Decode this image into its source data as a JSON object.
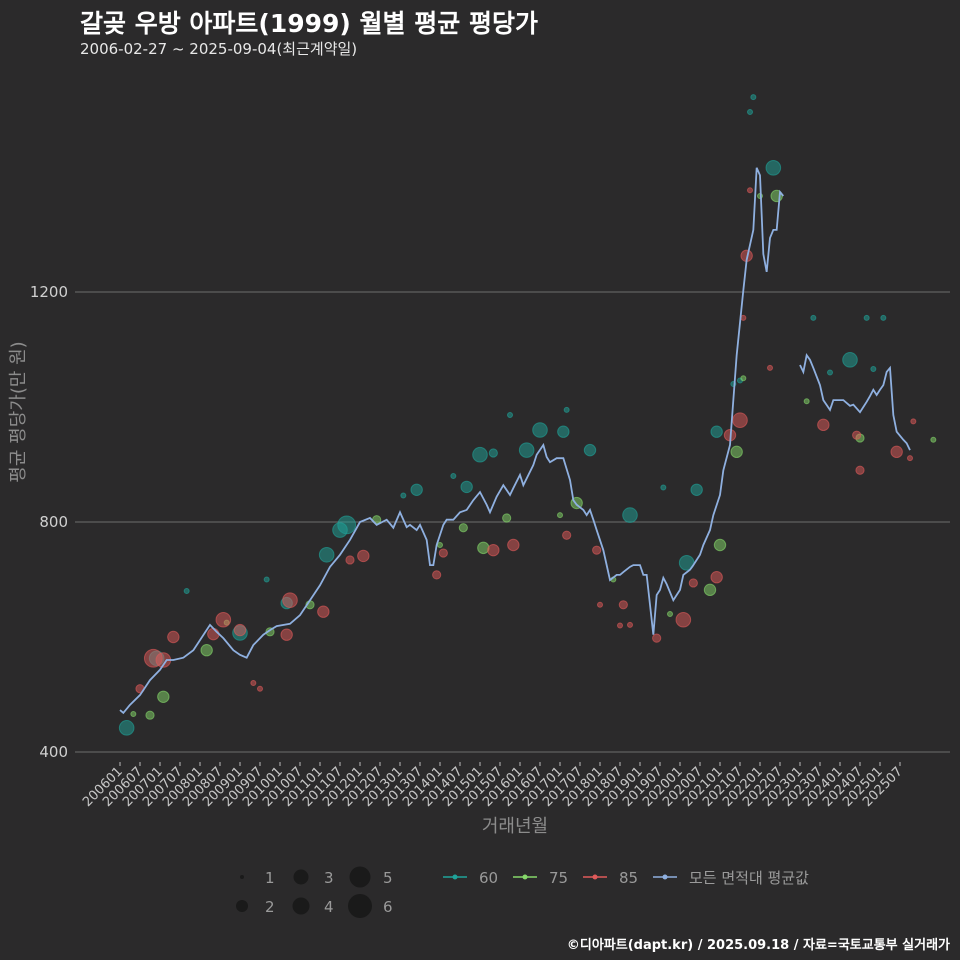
{
  "title": "갈곶 우방 아파트(1999) 월별 평균 평당가",
  "subtitle": "2006-02-27 ~ 2025-09-04(최근계약일)",
  "footer": "©디아파트(dapt.kr) / 2025.09.18 / 자료=국토교통부 실거래가",
  "colors": {
    "background": "#2b2a2b",
    "s60": "#1fa39a",
    "s75": "#86d86a",
    "s85": "#e05a5a",
    "avg": "#8fb0e0",
    "grid": "#6e6e6e"
  },
  "chart_data": {
    "type": "scatter",
    "title": "갈곶 우방 아파트(1999) 월별 평균 평당가",
    "xlabel": "거래년월",
    "ylabel": "평균 평당가(만 원)",
    "x_unit": "months since 2006-01",
    "ylim": [
      360,
      1560
    ],
    "yticks": [
      400,
      800,
      1200
    ],
    "xticks": [
      "200601",
      "200607",
      "200701",
      "200707",
      "200801",
      "200807",
      "200901",
      "200907",
      "201001",
      "201007",
      "201101",
      "201107",
      "201201",
      "201207",
      "201301",
      "201307",
      "201401",
      "201407",
      "201501",
      "201507",
      "201601",
      "201607",
      "201701",
      "201707",
      "201801",
      "201807",
      "201901",
      "201907",
      "202001",
      "202007",
      "202101",
      "202107",
      "202201",
      "202207",
      "202301",
      "202307",
      "202401",
      "202407",
      "202501",
      "202507"
    ],
    "size_legend": [
      "1",
      "2",
      "3",
      "4",
      "5",
      "6"
    ],
    "series_legend": [
      "60",
      "75",
      "85",
      "모든 면적대 평균값"
    ],
    "series": [
      {
        "name": "60",
        "color_key": "s60",
        "points": [
          [
            2,
            442,
            4
          ],
          [
            11,
            563,
            4
          ],
          [
            36,
            607,
            4
          ],
          [
            50,
            659,
            3
          ],
          [
            62,
            743,
            4
          ],
          [
            66,
            786,
            4
          ],
          [
            68,
            795,
            5
          ],
          [
            89,
            856,
            3
          ],
          [
            104,
            861,
            3
          ],
          [
            108,
            917,
            4
          ],
          [
            112,
            920,
            2
          ],
          [
            122,
            925,
            4
          ],
          [
            126,
            960,
            4
          ],
          [
            133,
            957,
            3
          ],
          [
            141,
            925,
            3
          ],
          [
            153,
            812,
            4
          ],
          [
            170,
            729,
            4
          ],
          [
            173,
            856,
            3
          ],
          [
            179,
            957,
            3
          ],
          [
            196,
            1416,
            4
          ],
          [
            219,
            1082,
            4
          ],
          [
            190,
            1539,
            1
          ],
          [
            189,
            1513,
            1
          ],
          [
            208,
            1155,
            1
          ],
          [
            224,
            1155,
            1
          ],
          [
            229,
            1155,
            1
          ],
          [
            117,
            986,
            1
          ],
          [
            134,
            995,
            1
          ],
          [
            20,
            680,
            1
          ],
          [
            44,
            700,
            1
          ],
          [
            85,
            846,
            1
          ],
          [
            100,
            880,
            1
          ],
          [
            163,
            860,
            1
          ],
          [
            184,
            1040,
            1
          ],
          [
            186,
            1046,
            1
          ],
          [
            213,
            1060,
            1
          ],
          [
            226,
            1066,
            1
          ]
        ]
      },
      {
        "name": "75",
        "color_key": "s75",
        "points": [
          [
            13,
            496,
            3
          ],
          [
            9,
            464,
            2
          ],
          [
            26,
            577,
            3
          ],
          [
            45,
            609,
            2
          ],
          [
            57,
            656,
            2
          ],
          [
            77,
            804,
            2
          ],
          [
            103,
            790,
            2
          ],
          [
            109,
            755,
            3
          ],
          [
            116,
            807,
            2
          ],
          [
            137,
            833,
            3
          ],
          [
            185,
            922,
            3
          ],
          [
            180,
            760,
            3
          ],
          [
            177,
            682,
            3
          ],
          [
            197,
            1367,
            3
          ],
          [
            222,
            946,
            2
          ],
          [
            206,
            1010,
            1
          ],
          [
            244,
            943,
            1
          ],
          [
            4,
            466,
            1
          ],
          [
            32,
            625,
            1
          ],
          [
            96,
            760,
            1
          ],
          [
            132,
            812,
            1
          ],
          [
            148,
            700,
            1
          ],
          [
            165,
            640,
            1
          ],
          [
            187,
            1050,
            1
          ],
          [
            192,
            1367,
            1
          ]
        ]
      },
      {
        "name": "85",
        "color_key": "s85",
        "points": [
          [
            13,
            560,
            4
          ],
          [
            10,
            563,
            5
          ],
          [
            16,
            600,
            3
          ],
          [
            28,
            605,
            3
          ],
          [
            31,
            630,
            4
          ],
          [
            36,
            612,
            3
          ],
          [
            51,
            664,
            4
          ],
          [
            50,
            604,
            3
          ],
          [
            61,
            644,
            3
          ],
          [
            69,
            734,
            2
          ],
          [
            73,
            741,
            3
          ],
          [
            95,
            708,
            2
          ],
          [
            97,
            746,
            2
          ],
          [
            112,
            751,
            3
          ],
          [
            118,
            760,
            3
          ],
          [
            134,
            777,
            2
          ],
          [
            143,
            751,
            2
          ],
          [
            151,
            656,
            2
          ],
          [
            161,
            598,
            2
          ],
          [
            169,
            630,
            4
          ],
          [
            172,
            694,
            2
          ],
          [
            179,
            704,
            3
          ],
          [
            186,
            977,
            4
          ],
          [
            183,
            951,
            3
          ],
          [
            188,
            1263,
            3
          ],
          [
            189,
            1377,
            1
          ],
          [
            211,
            969,
            3
          ],
          [
            221,
            951,
            2
          ],
          [
            222,
            890,
            2
          ],
          [
            233,
            922,
            3
          ],
          [
            237,
            911,
            1
          ],
          [
            195,
            1068,
            1
          ],
          [
            187,
            1155,
            1
          ],
          [
            144,
            656,
            1
          ],
          [
            153,
            621,
            1
          ],
          [
            6,
            510,
            2
          ],
          [
            40,
            520,
            1
          ],
          [
            42,
            510,
            1
          ],
          [
            150,
            620,
            1
          ],
          [
            238,
            975,
            1
          ]
        ]
      }
    ],
    "average": {
      "name": "모든 면적대 평균값",
      "color_key": "avg",
      "segments": [
        [
          [
            0,
            473
          ],
          [
            1,
            468
          ],
          [
            3,
            482
          ],
          [
            6,
            499
          ],
          [
            9,
            525
          ],
          [
            12,
            543
          ],
          [
            14,
            560
          ],
          [
            16,
            560
          ],
          [
            19,
            564
          ],
          [
            22,
            577
          ],
          [
            27,
            621
          ],
          [
            29,
            609
          ],
          [
            31,
            598
          ],
          [
            34,
            577
          ],
          [
            36,
            569
          ],
          [
            38,
            564
          ],
          [
            40,
            586
          ],
          [
            43,
            604
          ],
          [
            45,
            612
          ],
          [
            47,
            619
          ],
          [
            51,
            623
          ],
          [
            54,
            638
          ],
          [
            57,
            664
          ],
          [
            60,
            690
          ],
          [
            63,
            722
          ],
          [
            66,
            743
          ],
          [
            69,
            769
          ],
          [
            72,
            800
          ],
          [
            75,
            807
          ],
          [
            77,
            795
          ],
          [
            80,
            804
          ],
          [
            82,
            790
          ],
          [
            84,
            817
          ],
          [
            86,
            791
          ],
          [
            87,
            795
          ],
          [
            89,
            786
          ],
          [
            90,
            795
          ],
          [
            92,
            769
          ],
          [
            93,
            725
          ],
          [
            94,
            725
          ],
          [
            95,
            760
          ],
          [
            97,
            795
          ],
          [
            98,
            804
          ],
          [
            100,
            804
          ],
          [
            102,
            817
          ],
          [
            104,
            821
          ],
          [
            106,
            838
          ],
          [
            108,
            852
          ],
          [
            110,
            830
          ],
          [
            111,
            817
          ],
          [
            113,
            844
          ],
          [
            115,
            864
          ],
          [
            117,
            847
          ],
          [
            118,
            859
          ],
          [
            120,
            882
          ],
          [
            121,
            864
          ],
          [
            124,
            899
          ],
          [
            125,
            917
          ],
          [
            127,
            934
          ],
          [
            128,
            913
          ],
          [
            129,
            904
          ],
          [
            131,
            911
          ],
          [
            133,
            911
          ],
          [
            135,
            873
          ],
          [
            136,
            838
          ],
          [
            137,
            830
          ],
          [
            139,
            821
          ],
          [
            140,
            812
          ],
          [
            141,
            821
          ],
          [
            142,
            804
          ],
          [
            143,
            786
          ],
          [
            145,
            751
          ],
          [
            146,
            725
          ],
          [
            147,
            699
          ],
          [
            149,
            708
          ],
          [
            150,
            708
          ],
          [
            151,
            713
          ],
          [
            153,
            722
          ],
          [
            154,
            725
          ],
          [
            156,
            725
          ],
          [
            157,
            708
          ],
          [
            158,
            708
          ],
          [
            160,
            604
          ],
          [
            161,
            673
          ],
          [
            162,
            682
          ],
          [
            163,
            703
          ],
          [
            164,
            692
          ],
          [
            166,
            664
          ],
          [
            167,
            673
          ],
          [
            168,
            682
          ],
          [
            169,
            708
          ],
          [
            171,
            717
          ],
          [
            172,
            725
          ],
          [
            174,
            743
          ],
          [
            175,
            760
          ],
          [
            177,
            786
          ],
          [
            178,
            812
          ],
          [
            180,
            847
          ],
          [
            181,
            890
          ],
          [
            183,
            934
          ],
          [
            184,
            1012
          ],
          [
            185,
            1090
          ],
          [
            187,
            1203
          ],
          [
            188,
            1256
          ],
          [
            190,
            1308
          ],
          [
            191,
            1416
          ],
          [
            192,
            1403
          ],
          [
            193,
            1266
          ],
          [
            194,
            1235
          ],
          [
            195,
            1294
          ],
          [
            196,
            1308
          ],
          [
            197,
            1308
          ],
          [
            198,
            1374
          ],
          [
            199,
            1367
          ]
        ],
        [
          [
            204,
            1073
          ],
          [
            205,
            1061
          ],
          [
            206,
            1090
          ],
          [
            207,
            1082
          ],
          [
            208,
            1068
          ],
          [
            210,
            1038
          ],
          [
            211,
            1012
          ],
          [
            213,
            995
          ],
          [
            214,
            1012
          ],
          [
            216,
            1012
          ],
          [
            217,
            1012
          ],
          [
            219,
            1002
          ],
          [
            220,
            1004
          ],
          [
            222,
            991
          ],
          [
            223,
            1000
          ],
          [
            224,
            1009
          ],
          [
            225,
            1019
          ],
          [
            226,
            1030
          ],
          [
            227,
            1021
          ],
          [
            228,
            1030
          ],
          [
            229,
            1038
          ],
          [
            230,
            1061
          ],
          [
            231,
            1068
          ],
          [
            232,
            986
          ],
          [
            233,
            957
          ],
          [
            235,
            943
          ],
          [
            236,
            937
          ],
          [
            237,
            925
          ]
        ]
      ]
    }
  }
}
